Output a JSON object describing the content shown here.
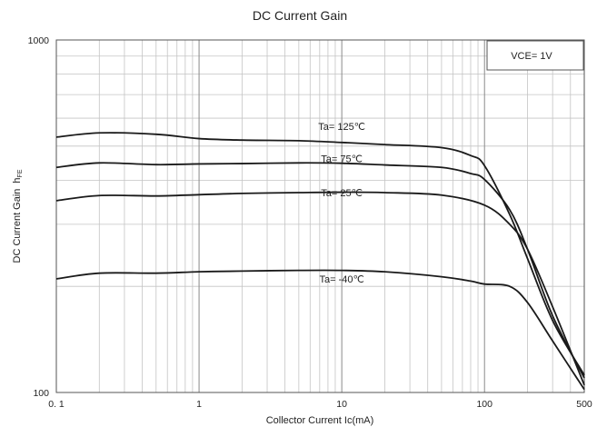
{
  "chart_data": {
    "type": "line",
    "title": "DC Current Gain",
    "xlabel": "Collector Current  Ic(mA)",
    "ylabel": "DC Current Gain",
    "ylabel_symbol": "h",
    "ylabel_sub": "FE",
    "x_scale": "log",
    "y_scale": "log",
    "xlim": [
      0.1,
      500
    ],
    "ylim": [
      100,
      1000
    ],
    "x_ticks": [
      {
        "value": 0.1,
        "label": "0. 1"
      },
      {
        "value": 1,
        "label": "1"
      },
      {
        "value": 10,
        "label": "10"
      },
      {
        "value": 100,
        "label": "100"
      },
      {
        "value": 500,
        "label": "500"
      }
    ],
    "y_ticks": [
      {
        "value": 100,
        "label": "100"
      },
      {
        "value": 1000,
        "label": "1000"
      }
    ],
    "grid": true,
    "annotation": "VCE= 1V",
    "series": [
      {
        "name": "Ta= 125℃",
        "label_at": [
          10,
          555
        ],
        "x": [
          0.1,
          0.2,
          0.5,
          1,
          2,
          5,
          10,
          20,
          50,
          80,
          100,
          150,
          200,
          300,
          500
        ],
        "y": [
          530,
          545,
          540,
          525,
          520,
          518,
          512,
          505,
          495,
          470,
          440,
          320,
          240,
          160,
          112
        ]
      },
      {
        "name": "Ta= 75℃",
        "label_at": [
          10,
          450
        ],
        "x": [
          0.1,
          0.2,
          0.5,
          1,
          2,
          5,
          10,
          20,
          50,
          80,
          100,
          150,
          200,
          300,
          500
        ],
        "y": [
          435,
          448,
          443,
          445,
          446,
          448,
          447,
          442,
          435,
          418,
          402,
          330,
          255,
          165,
          110
        ]
      },
      {
        "name": "Ta= 25℃",
        "label_at": [
          10,
          360
        ],
        "x": [
          0.1,
          0.2,
          0.5,
          1,
          2,
          5,
          10,
          20,
          50,
          100,
          150,
          200,
          300,
          500
        ],
        "y": [
          350,
          362,
          361,
          364,
          367,
          369,
          370,
          369,
          363,
          340,
          300,
          255,
          175,
          105
        ]
      },
      {
        "name": "Ta= -40℃",
        "label_at": [
          10,
          205
        ],
        "x": [
          0.1,
          0.2,
          0.5,
          1,
          2,
          5,
          10,
          20,
          50,
          80,
          100,
          150,
          200,
          300,
          500
        ],
        "y": [
          210,
          218,
          218,
          220,
          221,
          222,
          222,
          220,
          213,
          207,
          203,
          200,
          180,
          140,
          102
        ]
      }
    ]
  }
}
